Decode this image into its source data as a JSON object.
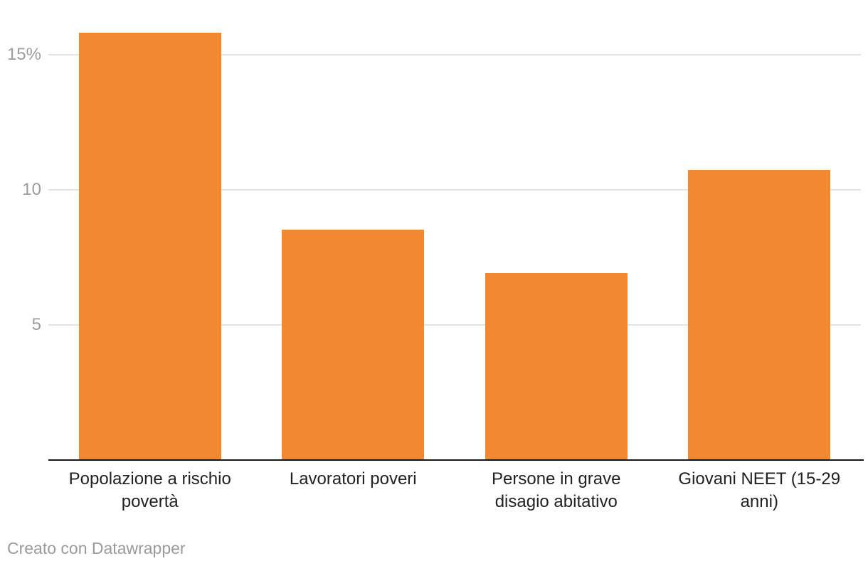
{
  "chart_data": {
    "type": "bar",
    "categories": [
      "Popolazione a rischio povertà",
      "Lavoratori poveri",
      "Persone in grave disagio abitativo",
      "Giovani NEET (15-29 anni)"
    ],
    "values": [
      15.8,
      8.5,
      6.9,
      10.7
    ],
    "title": "",
    "xlabel": "",
    "ylabel": "",
    "ylim": [
      0,
      16.8
    ],
    "yticks": [
      {
        "value": 5,
        "label": "5"
      },
      {
        "value": 10,
        "label": "10"
      },
      {
        "value": 15,
        "label": "15%"
      }
    ],
    "grid": true,
    "legend": "none",
    "bar_color": "#F2882F"
  },
  "xaxis": {
    "display_labels": [
      "Popolazione a rischio\npovertà",
      "Lavoratori poveri",
      "Persone in grave\ndisagio abitativo",
      "Giovani NEET (15-29\nanni)"
    ]
  },
  "footer": {
    "attribution": "Creato con Datawrapper"
  },
  "colors": {
    "bar": "#F2882F",
    "gridline": "#E4E4E4",
    "axis_line": "#161616",
    "tick_label": "#9D9D9D",
    "category_label": "#222222",
    "attribution": "#9A9A9A",
    "background": "#FFFFFF"
  }
}
